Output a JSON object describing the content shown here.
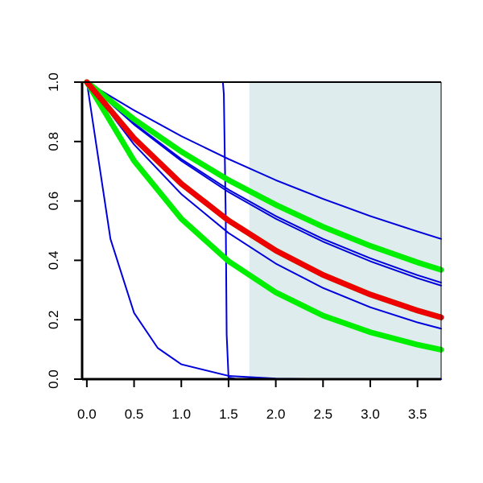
{
  "chart_data": {
    "type": "line",
    "title": "",
    "xlabel": "",
    "ylabel": "",
    "xlim": [
      -0.05,
      3.75
    ],
    "ylim": [
      0.0,
      1.0
    ],
    "x_ticks": [
      0.0,
      0.5,
      1.0,
      1.5,
      2.0,
      2.5,
      3.0,
      3.5
    ],
    "x_tick_labels": [
      "0.0",
      "0.5",
      "1.0",
      "1.5",
      "2.0",
      "2.5",
      "3.0",
      "3.5"
    ],
    "y_ticks": [
      0.0,
      0.2,
      0.4,
      0.6,
      0.8,
      1.0
    ],
    "y_tick_labels": [
      "0.0",
      "0.2",
      "0.4",
      "0.6",
      "0.8",
      "1.0"
    ],
    "grid": false,
    "legend": "none",
    "shaded_region": {
      "x_from": 1.72,
      "x_to": 3.75,
      "color": "#dfeced"
    },
    "series": [
      {
        "color": "#0000dd",
        "width": "thin",
        "x": [
          0,
          0.5,
          1.0,
          1.5,
          2.0,
          2.5,
          3.0,
          3.5,
          3.75
        ],
        "values": [
          1.0,
          0.905,
          0.818,
          0.741,
          0.67,
          0.607,
          0.549,
          0.497,
          0.472
        ]
      },
      {
        "color": "#0000dd",
        "width": "thin",
        "x": [
          0,
          0.5,
          1.0,
          1.5,
          2.0,
          2.5,
          3.0,
          3.5,
          3.75
        ],
        "values": [
          1.0,
          0.861,
          0.741,
          0.638,
          0.549,
          0.472,
          0.407,
          0.35,
          0.325
        ]
      },
      {
        "color": "#0000dd",
        "width": "thin",
        "x": [
          0,
          0.5,
          1.0,
          1.5,
          2.0,
          2.5,
          3.0,
          3.5,
          3.75
        ],
        "values": [
          1.0,
          0.857,
          0.735,
          0.63,
          0.54,
          0.463,
          0.397,
          0.34,
          0.315
        ]
      },
      {
        "color": "#0000dd",
        "width": "thin",
        "x": [
          0,
          0.5,
          1.0,
          1.5,
          2.0,
          2.5,
          3.0,
          3.5,
          3.75
        ],
        "values": [
          1.0,
          0.79,
          0.623,
          0.492,
          0.389,
          0.307,
          0.242,
          0.191,
          0.17
        ]
      },
      {
        "color": "#0000dd",
        "width": "thin",
        "x": [
          0,
          0.25,
          0.5,
          0.75,
          1.0,
          1.5,
          2.0,
          3.0,
          3.75
        ],
        "values": [
          1.0,
          0.472,
          0.223,
          0.105,
          0.05,
          0.011,
          0.002,
          0.0001,
          0.0
        ]
      },
      {
        "color": "#0000dd",
        "width": "thin",
        "x": [
          0,
          1.44,
          1.45,
          1.47,
          1.48,
          1.5,
          1.6,
          2.0,
          3.75
        ],
        "values": [
          1.0,
          1.0,
          0.96,
          0.55,
          0.15,
          0.005,
          0.0,
          0.0,
          0.0
        ]
      },
      {
        "color": "#00ee00",
        "width": "thick",
        "x": [
          0,
          0.5,
          1.0,
          1.5,
          2.0,
          2.5,
          3.0,
          3.5,
          3.75
        ],
        "values": [
          1.0,
          0.875,
          0.766,
          0.67,
          0.587,
          0.513,
          0.449,
          0.393,
          0.368
        ]
      },
      {
        "color": "#00ee00",
        "width": "thick",
        "x": [
          0,
          0.5,
          1.0,
          1.5,
          2.0,
          2.5,
          3.0,
          3.5,
          3.75
        ],
        "values": [
          1.0,
          0.811,
          0.658,
          0.534,
          0.433,
          0.351,
          0.285,
          0.231,
          0.208
        ]
      },
      {
        "color": "#00ee00",
        "width": "thick",
        "x": [
          0,
          0.5,
          1.0,
          1.5,
          2.0,
          2.5,
          3.0,
          3.5,
          3.75
        ],
        "values": [
          1.0,
          0.735,
          0.54,
          0.397,
          0.292,
          0.214,
          0.158,
          0.116,
          0.099
        ]
      },
      {
        "color": "#ee0000",
        "width": "thick",
        "x": [
          0,
          0.5,
          1.0,
          1.5,
          2.0,
          2.5,
          3.0,
          3.5,
          3.75
        ],
        "values": [
          1.0,
          0.811,
          0.658,
          0.534,
          0.433,
          0.351,
          0.285,
          0.231,
          0.208
        ]
      }
    ]
  }
}
